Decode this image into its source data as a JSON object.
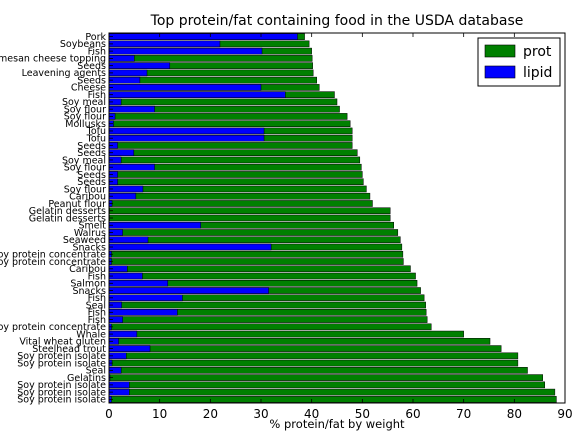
{
  "chart_data": {
    "type": "bar",
    "orientation": "horizontal",
    "stacked": false,
    "title": "Top protein/fat containing food in the USDA database",
    "xlabel": "% protein/fat by weight",
    "ylabel": "",
    "xlim": [
      0,
      90
    ],
    "xticks": [
      0,
      10,
      20,
      30,
      40,
      50,
      60,
      70,
      80,
      90
    ],
    "legend_position": "top-right",
    "categories": [
      "Pork",
      "Soybeans",
      "Fish",
      "Parmesan cheese topping",
      "Seeds",
      "Leavening agents",
      "Seeds",
      "Cheese",
      "Fish",
      "Soy meal",
      "Soy flour",
      "Soy flour",
      "Mollusks",
      "Tofu",
      "Tofu",
      "Seeds",
      "Seeds",
      "Soy meal",
      "Soy flour",
      "Seeds",
      "Seeds",
      "Soy flour",
      "Caribou",
      "Peanut flour",
      "Gelatin desserts",
      "Gelatin desserts",
      "Smelt",
      "Walrus",
      "Seaweed",
      "Snacks",
      "Soy protein concentrate",
      "Soy protein concentrate",
      "Caribou",
      "Fish",
      "Salmon",
      "Snacks",
      "Fish",
      "Seal",
      "Fish",
      "Fish",
      "Soy protein concentrate",
      "Whale",
      "Vital wheat gluten",
      "Steelhead trout",
      "Soy protein isolate",
      "Soy protein isolate",
      "Seal",
      "Gelatins",
      "Soy protein isolate",
      "Soy protein isolate",
      "Soy protein isolate"
    ],
    "series": [
      {
        "name": "prot",
        "color": "#008000",
        "values": [
          38.6,
          39.5,
          40.0,
          40.1,
          40.2,
          40.3,
          41.0,
          41.5,
          44.5,
          45.0,
          45.5,
          47.0,
          47.6,
          48.0,
          48.0,
          48.0,
          49.0,
          49.5,
          49.8,
          50.0,
          50.2,
          50.8,
          51.5,
          52.0,
          55.5,
          55.5,
          56.2,
          57.0,
          57.5,
          57.8,
          58.0,
          58.1,
          59.5,
          60.5,
          60.8,
          61.5,
          62.2,
          62.5,
          62.6,
          62.8,
          63.6,
          70.0,
          75.2,
          77.4,
          80.7,
          80.7,
          82.6,
          85.6,
          86.0,
          88.0,
          88.3
        ]
      },
      {
        "name": "lipid",
        "color": "#0000ff",
        "values": [
          37.2,
          21.9,
          30.2,
          5.0,
          12.0,
          7.5,
          6.1,
          30.0,
          34.8,
          2.4,
          9.0,
          1.2,
          0.9,
          30.6,
          30.6,
          1.7,
          4.9,
          2.4,
          9.0,
          1.7,
          1.7,
          6.7,
          5.3,
          0.6,
          0.1,
          0.1,
          18.1,
          2.7,
          7.7,
          32.0,
          0.5,
          0.5,
          3.6,
          6.6,
          11.6,
          31.5,
          14.5,
          2.5,
          13.5,
          2.7,
          0.5,
          5.5,
          1.9,
          8.1,
          3.4,
          0.6,
          2.4,
          0.2,
          4.0,
          4.0,
          0.5
        ]
      }
    ]
  }
}
